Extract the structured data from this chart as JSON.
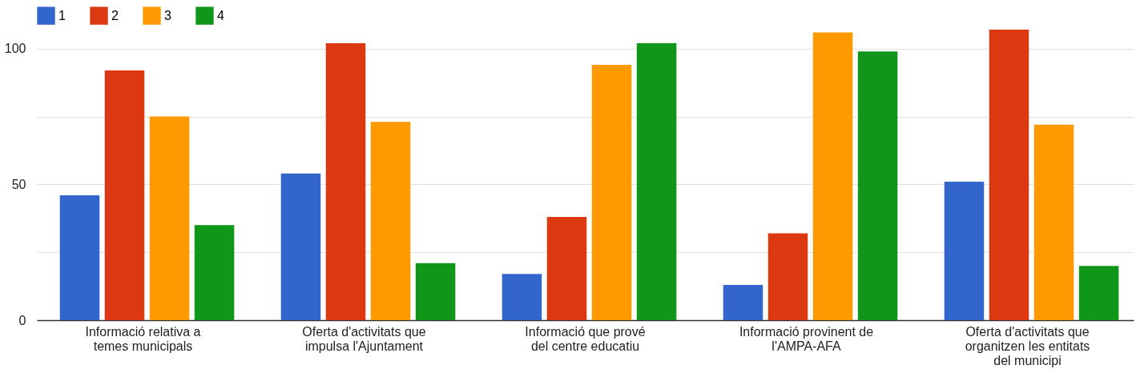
{
  "chart_data": {
    "type": "bar",
    "categories": [
      "Informació relativa a temes municipals",
      "Oferta d'activitats que impulsa l'Ajuntament",
      "Informació que prové del centre educatiu",
      "Informació provinent de l'AMPA-AFA",
      "Oferta d'activitats que organitzen les entitats del municipi"
    ],
    "series": [
      {
        "name": "1",
        "color": "#3366cc",
        "values": [
          46,
          54,
          17,
          13,
          51
        ]
      },
      {
        "name": "2",
        "color": "#dc3912",
        "values": [
          92,
          102,
          38,
          32,
          107
        ]
      },
      {
        "name": "3",
        "color": "#ff9900",
        "values": [
          75,
          73,
          94,
          106,
          72
        ]
      },
      {
        "name": "4",
        "color": "#109618",
        "values": [
          35,
          21,
          102,
          99,
          20
        ]
      }
    ],
    "ylim": [
      0,
      107
    ],
    "yticks": [
      0,
      {
        "value": 25,
        "label": null
      },
      50,
      {
        "value": 75,
        "label": null
      },
      100
    ],
    "grid": true,
    "legend": "top"
  }
}
